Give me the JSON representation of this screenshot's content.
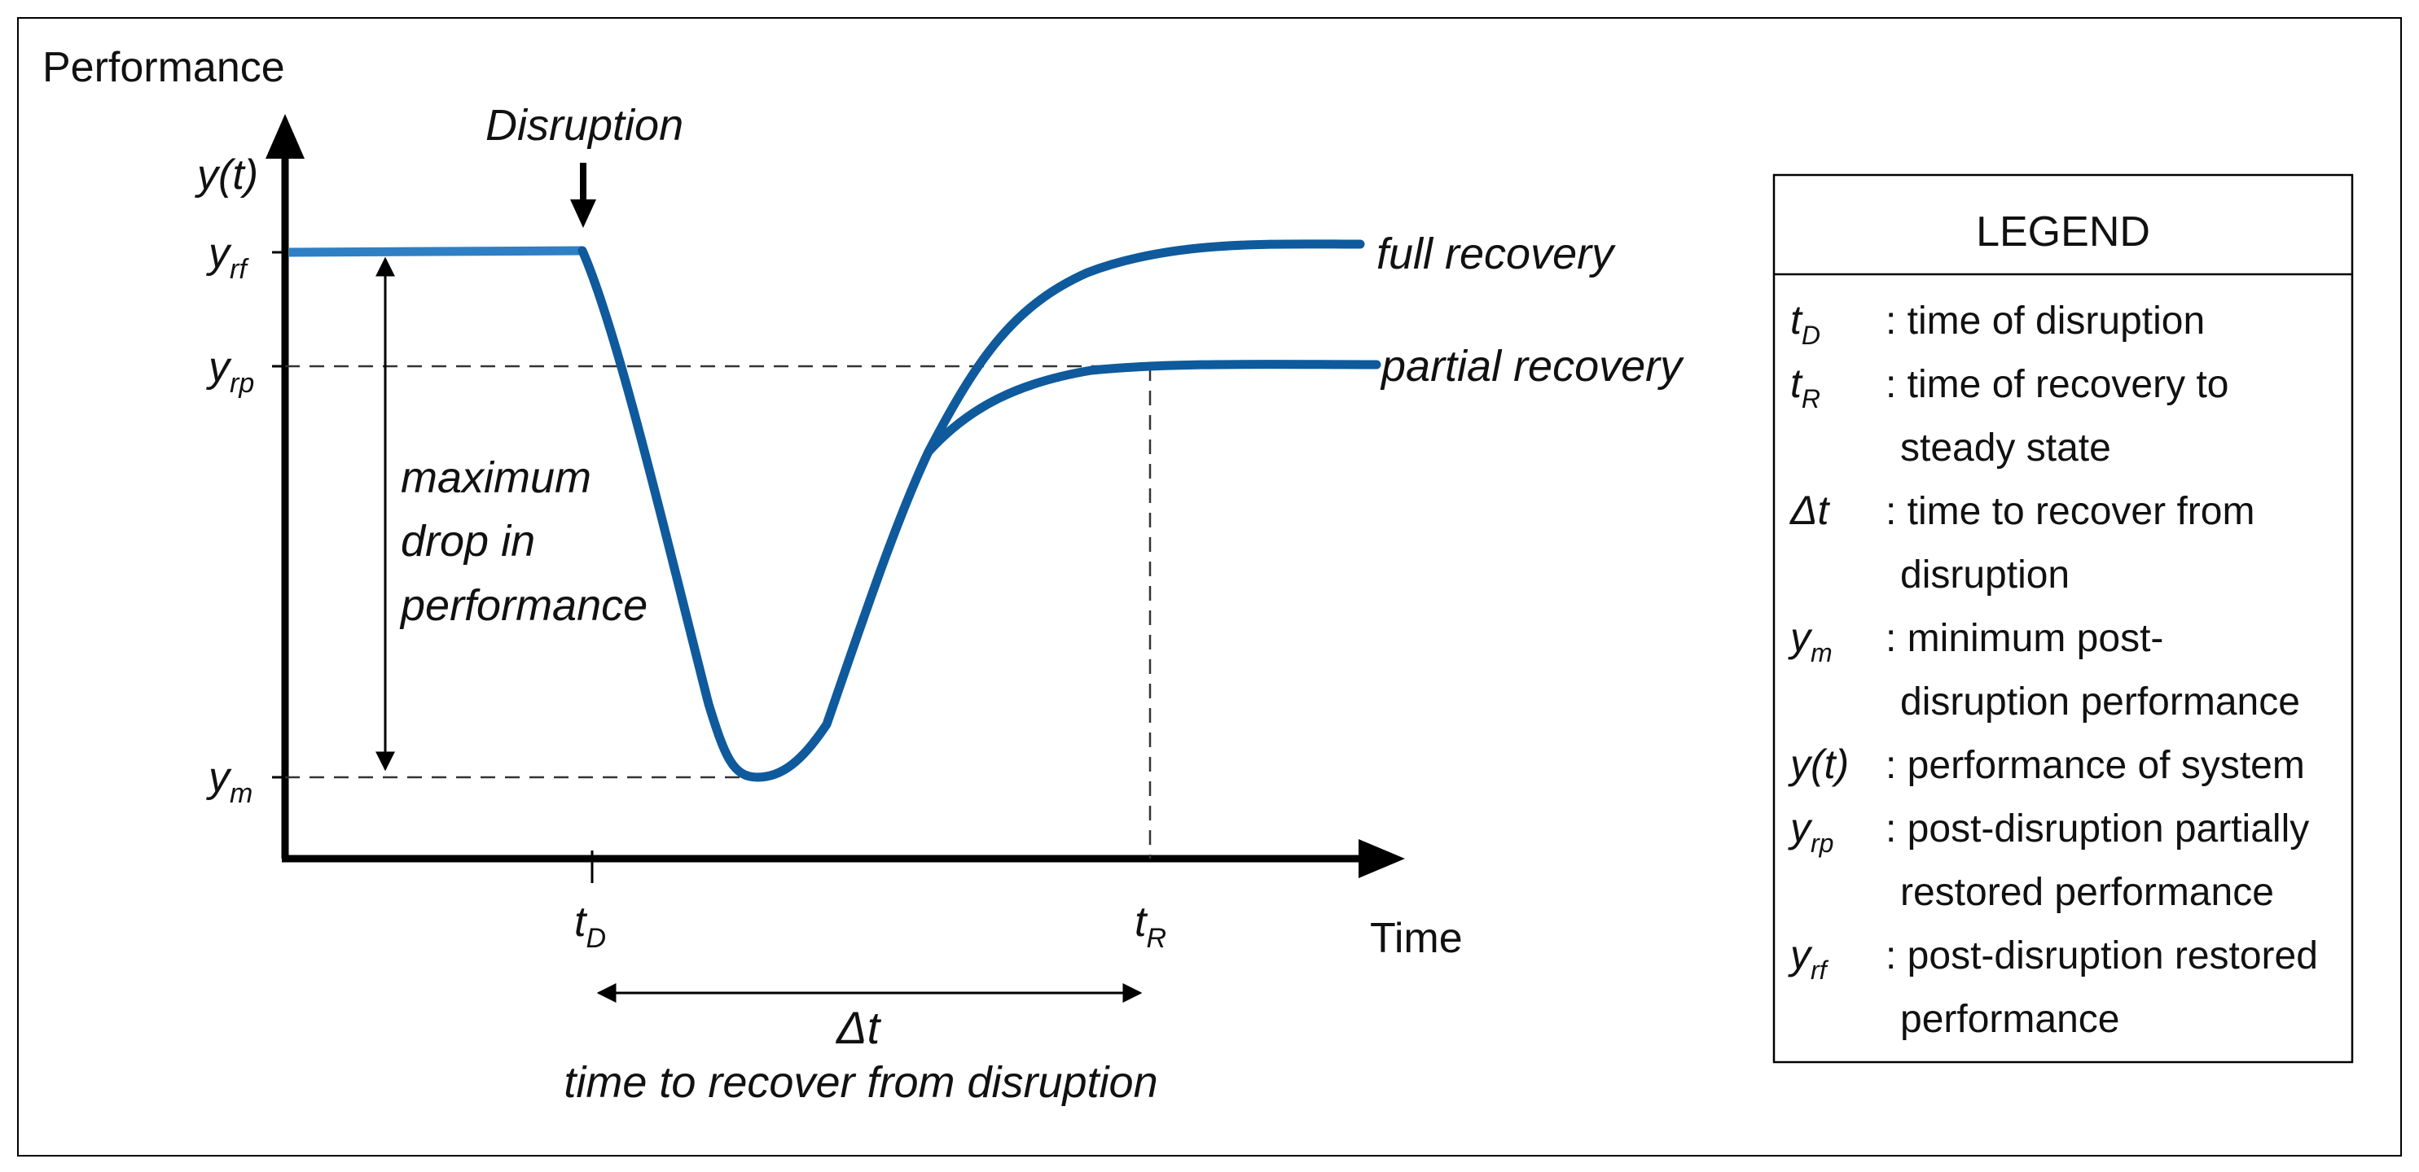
{
  "axes": {
    "y_title": "Performance",
    "y_func": "y(t)",
    "x_title": "Time"
  },
  "y_ticks": {
    "rf": {
      "main": "y",
      "sub": "rf"
    },
    "rp": {
      "main": "y",
      "sub": "rp"
    },
    "m": {
      "main": "y",
      "sub": "m"
    }
  },
  "x_ticks": {
    "tD": {
      "main": "t",
      "sub": "D"
    },
    "tR": {
      "main": "t",
      "sub": "R"
    }
  },
  "annotations": {
    "disruption": "Disruption",
    "max_drop": [
      "maximum",
      "drop in",
      "performance"
    ],
    "full_recovery": "full recovery",
    "partial_recovery": "partial recovery",
    "delta_t": "Δt",
    "delta_t_caption": "time to recover from disruption"
  },
  "legend": {
    "title": "LEGEND",
    "items": [
      {
        "sym_main": "t",
        "sym_sub": "D",
        "lines": [
          ": time of disruption"
        ]
      },
      {
        "sym_main": "t",
        "sym_sub": "R",
        "lines": [
          ": time of recovery to",
          "steady state"
        ]
      },
      {
        "sym_main": "Δt",
        "sym_sub": "",
        "lines": [
          ": time to recover from",
          "disruption"
        ]
      },
      {
        "sym_main": "y",
        "sym_sub": "m",
        "lines": [
          ": minimum post-",
          "disruption performance"
        ]
      },
      {
        "sym_main": "y(t)",
        "sym_sub": "",
        "lines": [
          ": performance of system"
        ]
      },
      {
        "sym_main": "y",
        "sym_sub": "rp",
        "lines": [
          ": post-disruption partially",
          "restored performance"
        ]
      },
      {
        "sym_main": "y",
        "sym_sub": "rf",
        "lines": [
          ": post-disruption restored",
          "performance"
        ]
      }
    ]
  },
  "colors": {
    "curve": "#0e5a9c",
    "curve_pre": "#2f7fc4",
    "axis": "#000000",
    "dash": "#333333"
  }
}
